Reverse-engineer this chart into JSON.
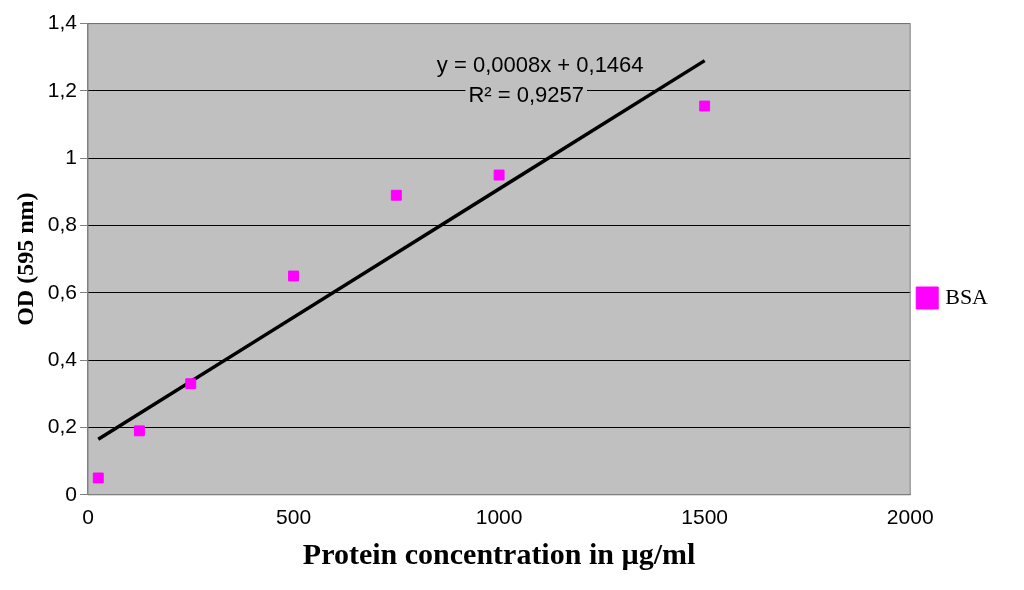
{
  "chart_data": {
    "type": "scatter",
    "xlabel": "Protein concentration in µg/ml",
    "ylabel": "OD (595 nm)",
    "xlim": [
      0,
      2000
    ],
    "xticks": [
      0,
      500,
      1000,
      1500,
      2000
    ],
    "ylim": [
      0,
      1.4
    ],
    "yticks": [
      0,
      {
        "value": 0.2,
        "label": "0,2"
      },
      {
        "value": 0.4,
        "label": "0,4"
      },
      {
        "value": 0.6,
        "label": "0,6"
      },
      {
        "value": 0.8,
        "label": "0,8"
      },
      1,
      {
        "value": 1.2,
        "label": "1,2"
      },
      {
        "value": 1.4,
        "label": "1,4"
      }
    ],
    "grid": "y",
    "legend": "right",
    "marker": "square",
    "annotations": [
      "y = 0,0008x + 0,1464",
      "R² = 0,9257"
    ],
    "series": [
      {
        "name": "BSA",
        "color": "#ff00ff",
        "x": [
          25,
          125,
          250,
          500,
          750,
          1000,
          1500
        ],
        "values": [
          0.05,
          0.19,
          0.33,
          0.65,
          0.89,
          0.95,
          1.155
        ]
      },
      {
        "type": "line",
        "color": "#000000",
        "x": [
          25,
          1500
        ],
        "values": [
          0.165,
          1.29
        ],
        "marker": "none"
      }
    ]
  }
}
